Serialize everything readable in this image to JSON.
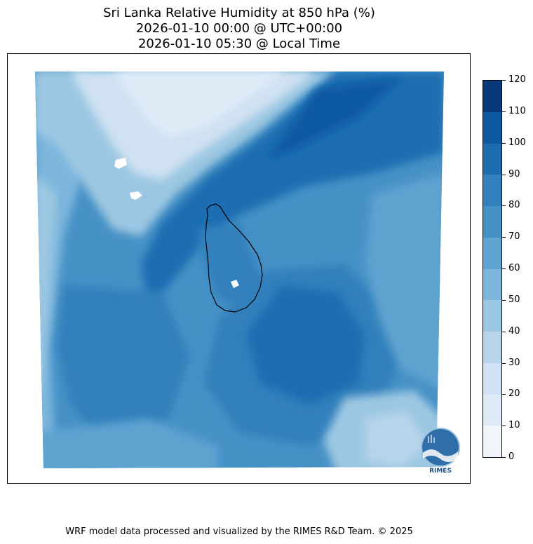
{
  "title": {
    "line1": "Sri Lanka Relative Humidity at 850 hPa (%)",
    "line2": "2026-01-10 00:00 @ UTC+00:00",
    "line3": "2026-01-10 05:30 @ Local Time"
  },
  "colorbar": {
    "ticks": [
      "0",
      "10",
      "20",
      "30",
      "40",
      "50",
      "60",
      "70",
      "80",
      "90",
      "100",
      "110",
      "120"
    ],
    "colors": [
      "#f1f6fc",
      "#deebf7",
      "#cfe1f2",
      "#b7d4ea",
      "#9cc7e2",
      "#7db6dc",
      "#5fa3d0",
      "#4691c6",
      "#3280bc",
      "#1f6db1",
      "#0f58a2",
      "#083a7a"
    ]
  },
  "logo": {
    "text": "RIMES"
  },
  "footer": "WRF model data processed and visualized by the RIMES R&D Team. © 2025"
}
